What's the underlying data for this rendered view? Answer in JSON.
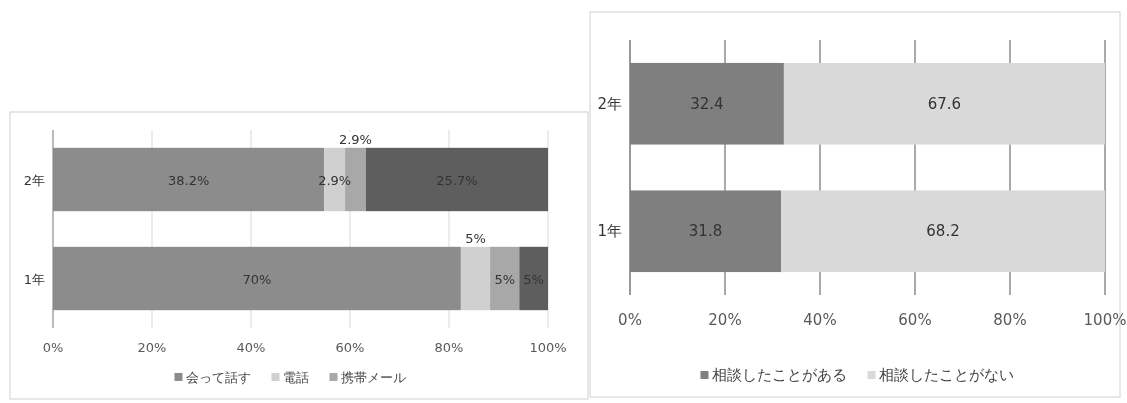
{
  "chart_data": [
    {
      "type": "bar",
      "orientation": "horizontal",
      "stacked": true,
      "categories": [
        "2年",
        "1年"
      ],
      "series": [
        {
          "name": "会って話す",
          "color": "#8c8c8c",
          "values": [
            54.8,
            82.4
          ]
        },
        {
          "name": "電話",
          "color": "#d0d0d0",
          "values": [
            4.2,
            5.9
          ]
        },
        {
          "name": "携帯メール",
          "color": "#a8a8a8",
          "values": [
            4.2,
            5.9
          ]
        },
        {
          "color": "#5e5e5e",
          "values": [
            36.8,
            5.8
          ]
        }
      ],
      "annotations": [
        "38.2%",
        "2.9%",
        "2.9%",
        "25.7%",
        "70%",
        "5%",
        "5%",
        "5%"
      ],
      "xlim": [
        0,
        100
      ],
      "xticks": [
        {
          "value": 0,
          "label": "0%"
        },
        {
          "value": 20,
          "label": "20%"
        },
        {
          "value": 40,
          "label": "40%"
        },
        {
          "value": 60,
          "label": "60%"
        },
        {
          "value": 80,
          "label": "80%"
        },
        {
          "value": 100,
          "label": "100%"
        }
      ],
      "grid": "x",
      "legend": "bottom"
    },
    {
      "type": "bar",
      "orientation": "horizontal",
      "stacked": true,
      "categories": [
        "2年",
        "1年"
      ],
      "series": [
        {
          "name": "相談したことがある",
          "color": "#7f7f7f",
          "values": [
            32.4,
            31.8
          ]
        },
        {
          "name": "相談したことがない",
          "color": "#d9d9d9",
          "values": [
            67.6,
            68.2
          ]
        }
      ],
      "xlim": [
        0,
        100
      ],
      "xticks": [
        {
          "value": 0,
          "label": "0%"
        },
        {
          "value": 20,
          "label": "20%"
        },
        {
          "value": 40,
          "label": "40%"
        },
        {
          "value": 60,
          "label": "60%"
        },
        {
          "value": 80,
          "label": "80%"
        },
        {
          "value": 100,
          "label": "100%"
        }
      ],
      "grid": "x",
      "legend": "bottom",
      "data_labels": true
    }
  ]
}
